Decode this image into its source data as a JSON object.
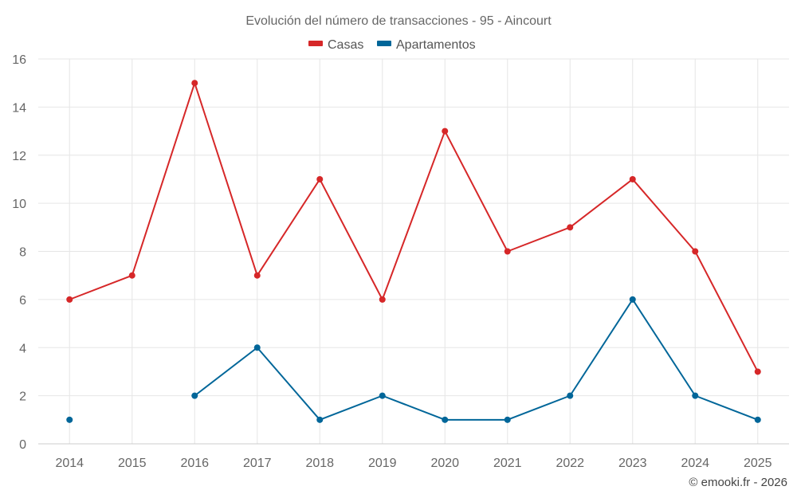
{
  "credit": "© emooki.fr - 2026",
  "chart_data": {
    "type": "line",
    "title": "Evolución del número de transacciones - 95 - Aincourt",
    "xlabel": "",
    "ylabel": "",
    "categories": [
      "2014",
      "2015",
      "2016",
      "2017",
      "2018",
      "2019",
      "2020",
      "2021",
      "2022",
      "2023",
      "2024",
      "2025"
    ],
    "yticks": [
      "0",
      "2",
      "4",
      "6",
      "8",
      "10",
      "12",
      "14",
      "16"
    ],
    "ylim": [
      0,
      16
    ],
    "grid": true,
    "legend_position": "top-center",
    "series": [
      {
        "name": "Casas",
        "color": "#d62728",
        "values": [
          6,
          7,
          15,
          7,
          11,
          6,
          13,
          8,
          9,
          11,
          8,
          3
        ]
      },
      {
        "name": "Apartamentos",
        "color": "#006699",
        "values": [
          1,
          null,
          2,
          4,
          1,
          2,
          1,
          1,
          2,
          6,
          2,
          1
        ]
      }
    ]
  }
}
